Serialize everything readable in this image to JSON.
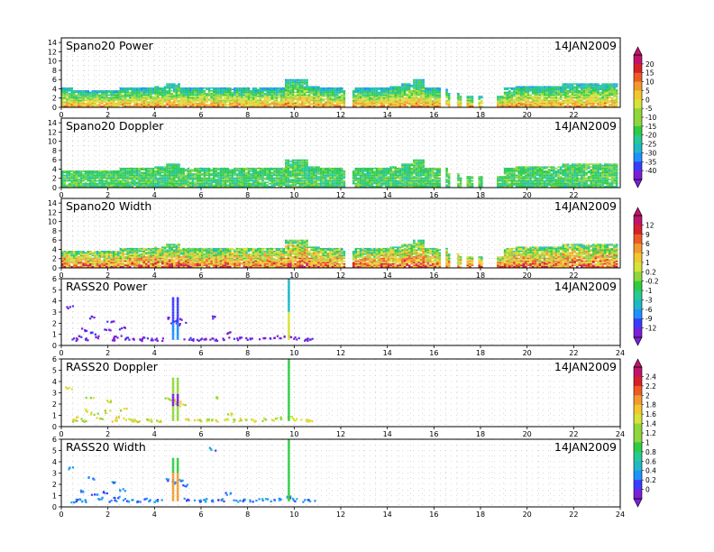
{
  "chart_data": [
    {
      "type": "heatmap",
      "title": "Spano20 Power",
      "date": "14JAN2009",
      "xlim": [
        0,
        24
      ],
      "ylim": [
        0,
        15
      ],
      "xticks": [
        0,
        2,
        4,
        6,
        8,
        10,
        12,
        14,
        16,
        18,
        20,
        22
      ],
      "yticks": [
        0,
        2,
        4,
        6,
        8,
        10,
        12,
        14
      ],
      "coverage_top_km": [
        [
          0,
          4
        ],
        [
          0.5,
          3.5
        ],
        [
          1,
          3.5
        ],
        [
          1.5,
          3.5
        ],
        [
          2,
          3.5
        ],
        [
          2.5,
          4
        ],
        [
          3,
          4
        ],
        [
          3.5,
          4
        ],
        [
          4,
          4.5
        ],
        [
          4.5,
          5
        ],
        [
          5,
          4
        ],
        [
          5.5,
          4
        ],
        [
          6,
          4
        ],
        [
          6.5,
          4
        ],
        [
          7,
          4
        ],
        [
          7.5,
          4
        ],
        [
          8,
          4
        ],
        [
          8.5,
          4
        ],
        [
          9,
          4
        ],
        [
          9.5,
          6
        ],
        [
          10,
          6
        ],
        [
          10.5,
          4.5
        ],
        [
          11,
          4
        ],
        [
          11.5,
          4
        ],
        [
          12,
          3.5
        ],
        [
          12.5,
          4
        ],
        [
          13,
          4
        ],
        [
          13.5,
          4
        ],
        [
          14,
          4.5
        ],
        [
          14.5,
          5
        ],
        [
          15,
          6
        ],
        [
          15.5,
          4
        ],
        [
          16,
          4
        ],
        [
          16.5,
          3
        ],
        [
          17,
          2.5
        ],
        [
          17.5,
          2.5
        ],
        [
          18.5,
          2.5
        ],
        [
          19,
          4
        ],
        [
          19.5,
          4.5
        ],
        [
          20,
          4.5
        ],
        [
          20.5,
          4.5
        ],
        [
          21,
          4.5
        ],
        [
          21.5,
          5
        ],
        [
          22,
          5
        ],
        [
          22.5,
          5
        ],
        [
          23,
          5
        ],
        [
          23.5,
          5
        ]
      ],
      "gaps_hours": [
        [
          12.1,
          12.4
        ],
        [
          16.2,
          16.4
        ],
        [
          16.6,
          16.9
        ],
        [
          17.1,
          17.3
        ],
        [
          17.6,
          17.8
        ],
        [
          18.0,
          18.6
        ],
        [
          18.8,
          18.9
        ]
      ]
    },
    {
      "type": "heatmap",
      "title": "Spano20 Doppler",
      "date": "14JAN2009",
      "xlim": [
        0,
        24
      ],
      "ylim": [
        0,
        15
      ],
      "xticks": [
        0,
        2,
        4,
        6,
        8,
        10,
        12,
        14,
        16,
        18,
        20,
        22
      ],
      "yticks": [
        0,
        2,
        4,
        6,
        8,
        10,
        12,
        14
      ],
      "coverage_top_km": [
        [
          0,
          3.5
        ],
        [
          0.5,
          3.5
        ],
        [
          1,
          3.5
        ],
        [
          1.5,
          3.5
        ],
        [
          2,
          3.5
        ],
        [
          2.5,
          4
        ],
        [
          3,
          4
        ],
        [
          3.5,
          4
        ],
        [
          4,
          4.5
        ],
        [
          4.5,
          5
        ],
        [
          5,
          4
        ],
        [
          5.5,
          4
        ],
        [
          6,
          4
        ],
        [
          6.5,
          4
        ],
        [
          7,
          4
        ],
        [
          7.5,
          4
        ],
        [
          8,
          4
        ],
        [
          8.5,
          4
        ],
        [
          9,
          4
        ],
        [
          9.5,
          6
        ],
        [
          10,
          6
        ],
        [
          10.5,
          4.5
        ],
        [
          11,
          4
        ],
        [
          11.5,
          4
        ],
        [
          12,
          3.5
        ],
        [
          12.5,
          4
        ],
        [
          13,
          4
        ],
        [
          13.5,
          4
        ],
        [
          14,
          4.5
        ],
        [
          14.5,
          5
        ],
        [
          15,
          6
        ],
        [
          15.5,
          4
        ],
        [
          16,
          4
        ],
        [
          16.5,
          3
        ],
        [
          17,
          2.5
        ],
        [
          17.5,
          2.5
        ],
        [
          18.5,
          2.5
        ],
        [
          19,
          4
        ],
        [
          19.5,
          4.5
        ],
        [
          20,
          4.5
        ],
        [
          20.5,
          4.5
        ],
        [
          21,
          4.5
        ],
        [
          21.5,
          5
        ],
        [
          22,
          5
        ],
        [
          22.5,
          5
        ],
        [
          23,
          5
        ],
        [
          23.5,
          5
        ]
      ],
      "gaps_hours": [
        [
          12.1,
          12.4
        ],
        [
          16.2,
          16.4
        ],
        [
          16.6,
          16.9
        ],
        [
          17.1,
          17.3
        ],
        [
          17.6,
          17.8
        ],
        [
          18.0,
          18.6
        ],
        [
          18.8,
          18.9
        ]
      ]
    },
    {
      "type": "heatmap",
      "title": "Spano20 Width",
      "date": "14JAN2009",
      "xlim": [
        0,
        24
      ],
      "ylim": [
        0,
        15
      ],
      "xticks": [
        0,
        2,
        4,
        6,
        8,
        10,
        12,
        14,
        16,
        18,
        20,
        22
      ],
      "yticks": [
        0,
        2,
        4,
        6,
        8,
        10,
        12,
        14
      ],
      "coverage_top_km": [
        [
          0,
          3.5
        ],
        [
          0.5,
          3.5
        ],
        [
          1,
          3.5
        ],
        [
          1.5,
          3.5
        ],
        [
          2,
          3.5
        ],
        [
          2.5,
          4
        ],
        [
          3,
          4
        ],
        [
          3.5,
          4
        ],
        [
          4,
          4.5
        ],
        [
          4.5,
          5
        ],
        [
          5,
          4
        ],
        [
          5.5,
          4
        ],
        [
          6,
          4
        ],
        [
          6.5,
          4
        ],
        [
          7,
          4
        ],
        [
          7.5,
          4
        ],
        [
          8,
          4
        ],
        [
          8.5,
          4
        ],
        [
          9,
          4
        ],
        [
          9.5,
          6
        ],
        [
          10,
          6
        ],
        [
          10.5,
          4.5
        ],
        [
          11,
          4
        ],
        [
          11.5,
          4
        ],
        [
          12,
          3.5
        ],
        [
          12.5,
          4
        ],
        [
          13,
          4
        ],
        [
          13.5,
          4
        ],
        [
          14,
          4.5
        ],
        [
          14.5,
          5
        ],
        [
          15,
          6
        ],
        [
          15.5,
          4
        ],
        [
          16,
          4
        ],
        [
          16.5,
          3
        ],
        [
          17,
          2.5
        ],
        [
          17.5,
          2.5
        ],
        [
          18.5,
          2.5
        ],
        [
          19,
          4
        ],
        [
          19.5,
          4.5
        ],
        [
          20,
          4.5
        ],
        [
          20.5,
          4.5
        ],
        [
          21,
          4.5
        ],
        [
          21.5,
          5
        ],
        [
          22,
          5
        ],
        [
          22.5,
          5
        ],
        [
          23,
          5
        ],
        [
          23.5,
          5
        ]
      ],
      "gaps_hours": [
        [
          12.1,
          12.4
        ],
        [
          16.2,
          16.4
        ],
        [
          16.6,
          16.9
        ],
        [
          17.1,
          17.3
        ],
        [
          17.6,
          17.8
        ],
        [
          18.0,
          18.6
        ],
        [
          18.8,
          18.9
        ]
      ]
    },
    {
      "type": "scatter",
      "title": "RASS20 Power",
      "date": "14JAN2009",
      "xlim": [
        0,
        24
      ],
      "ylim": [
        0,
        6
      ],
      "xticks": [
        0,
        2,
        4,
        6,
        8,
        10,
        12,
        14,
        16,
        18,
        20,
        22,
        24
      ],
      "yticks": [
        0,
        1,
        2,
        3,
        4,
        5,
        6
      ],
      "points": [
        [
          0.3,
          3.5
        ],
        [
          0.5,
          0.6
        ],
        [
          0.7,
          0.8
        ],
        [
          0.9,
          1.5
        ],
        [
          1.0,
          0.6
        ],
        [
          1.2,
          2.6
        ],
        [
          1.4,
          1.2
        ],
        [
          1.6,
          0.8
        ],
        [
          1.9,
          1.4
        ],
        [
          2.1,
          2.3
        ],
        [
          2.2,
          0.6
        ],
        [
          2.4,
          0.9
        ],
        [
          2.6,
          1.6
        ],
        [
          2.8,
          0.7
        ],
        [
          3.0,
          0.6
        ],
        [
          3.3,
          0.6
        ],
        [
          3.6,
          0.7
        ],
        [
          3.9,
          0.6
        ],
        [
          4.2,
          0.6
        ],
        [
          4.6,
          2.5
        ],
        [
          4.8,
          2.2
        ],
        [
          5.0,
          2.4
        ],
        [
          5.2,
          2.0
        ],
        [
          5.4,
          0.7
        ],
        [
          5.8,
          0.6
        ],
        [
          6.1,
          0.6
        ],
        [
          6.3,
          0.7
        ],
        [
          6.6,
          0.6
        ],
        [
          7.0,
          0.7
        ],
        [
          7.5,
          0.6
        ],
        [
          7.8,
          0.7
        ],
        [
          8.2,
          0.6
        ],
        [
          8.6,
          0.7
        ],
        [
          9.0,
          0.7
        ],
        [
          9.4,
          0.8
        ],
        [
          9.7,
          0.9
        ],
        [
          10.0,
          0.7
        ],
        [
          10.4,
          0.6
        ],
        [
          10.7,
          0.6
        ],
        [
          6.5,
          2.6
        ],
        [
          7.2,
          1.2
        ]
      ]
    },
    {
      "type": "scatter",
      "title": "RASS20 Doppler",
      "date": "14JAN2009",
      "xlim": [
        0,
        24
      ],
      "ylim": [
        0,
        6
      ],
      "xticks": [
        0,
        2,
        4,
        6,
        8,
        10,
        12,
        14,
        16,
        18,
        20,
        22,
        24
      ],
      "yticks": [
        0,
        1,
        2,
        3,
        4,
        5,
        6
      ],
      "points": [
        [
          0.3,
          3.5
        ],
        [
          0.5,
          0.6
        ],
        [
          0.7,
          0.8
        ],
        [
          0.9,
          1.5
        ],
        [
          1.0,
          0.6
        ],
        [
          1.2,
          2.6
        ],
        [
          1.4,
          1.2
        ],
        [
          1.6,
          0.8
        ],
        [
          1.9,
          1.4
        ],
        [
          2.1,
          2.3
        ],
        [
          2.2,
          0.6
        ],
        [
          2.4,
          0.9
        ],
        [
          2.6,
          1.6
        ],
        [
          2.8,
          0.7
        ],
        [
          3.0,
          0.6
        ],
        [
          3.3,
          0.6
        ],
        [
          3.6,
          0.7
        ],
        [
          3.9,
          0.6
        ],
        [
          4.2,
          0.6
        ],
        [
          4.6,
          2.5
        ],
        [
          4.8,
          2.2
        ],
        [
          5.0,
          2.4
        ],
        [
          5.2,
          2.0
        ],
        [
          5.4,
          0.7
        ],
        [
          5.8,
          0.6
        ],
        [
          6.1,
          0.6
        ],
        [
          6.3,
          0.7
        ],
        [
          6.6,
          0.6
        ],
        [
          7.0,
          0.7
        ],
        [
          7.5,
          0.6
        ],
        [
          7.8,
          0.7
        ],
        [
          8.2,
          0.6
        ],
        [
          8.6,
          0.7
        ],
        [
          9.0,
          0.7
        ],
        [
          9.4,
          0.8
        ],
        [
          9.7,
          0.9
        ],
        [
          10.0,
          0.7
        ],
        [
          10.4,
          0.6
        ],
        [
          10.7,
          0.6
        ],
        [
          6.5,
          2.6
        ],
        [
          7.2,
          1.2
        ]
      ]
    },
    {
      "type": "scatter",
      "title": "RASS20 Width",
      "date": "14JAN2009",
      "xlim": [
        0,
        24
      ],
      "ylim": [
        0,
        6
      ],
      "xticks": [
        0,
        2,
        4,
        6,
        8,
        10,
        12,
        14,
        16,
        18,
        20,
        22,
        24
      ],
      "yticks": [
        0,
        1,
        2,
        3,
        4,
        5,
        6
      ],
      "points": [
        [
          0.3,
          3.5
        ],
        [
          0.5,
          0.6
        ],
        [
          0.7,
          0.8
        ],
        [
          0.9,
          1.5
        ],
        [
          1.0,
          0.6
        ],
        [
          1.2,
          2.6
        ],
        [
          1.4,
          1.2
        ],
        [
          1.6,
          0.8
        ],
        [
          1.9,
          1.4
        ],
        [
          2.1,
          2.3
        ],
        [
          2.2,
          0.6
        ],
        [
          2.4,
          0.9
        ],
        [
          2.6,
          1.6
        ],
        [
          2.8,
          0.7
        ],
        [
          3.0,
          0.6
        ],
        [
          3.3,
          0.6
        ],
        [
          3.6,
          0.7
        ],
        [
          3.9,
          0.6
        ],
        [
          4.2,
          0.6
        ],
        [
          4.6,
          2.5
        ],
        [
          4.8,
          2.2
        ],
        [
          5.0,
          2.4
        ],
        [
          5.2,
          2.0
        ],
        [
          5.4,
          0.7
        ],
        [
          5.8,
          0.6
        ],
        [
          6.1,
          0.6
        ],
        [
          6.3,
          0.7
        ],
        [
          6.6,
          0.6
        ],
        [
          7.0,
          0.7
        ],
        [
          7.5,
          0.6
        ],
        [
          7.8,
          0.7
        ],
        [
          8.2,
          0.6
        ],
        [
          8.6,
          0.7
        ],
        [
          9.0,
          0.7
        ],
        [
          9.4,
          0.8
        ],
        [
          9.7,
          0.9
        ],
        [
          10.0,
          0.7
        ],
        [
          10.4,
          0.6
        ],
        [
          10.7,
          0.6
        ],
        [
          6.5,
          5.2
        ],
        [
          7.2,
          1.2
        ]
      ]
    }
  ],
  "colorbars": [
    {
      "labels": [
        "20",
        "15",
        "10",
        "5",
        "0",
        "-5",
        "-10",
        "-15",
        "-20",
        "-25",
        "-30",
        "-35",
        "-40"
      ]
    },
    {
      "labels": [
        "12",
        "9",
        "6",
        "3",
        "1",
        "0.2",
        "-0.2",
        "-1",
        "-3",
        "-6",
        "-9",
        "-12"
      ]
    },
    {
      "labels": [
        "2.4",
        "2.2",
        "2",
        "1.8",
        "1.6",
        "1.4",
        "1.2",
        "1",
        "0.8",
        "0.6",
        "0.4",
        "0.2",
        "0"
      ]
    }
  ],
  "palette": [
    "#7a1fd6",
    "#3b3bff",
    "#1e90ff",
    "#1fb8c7",
    "#27c994",
    "#2ecc40",
    "#8fd63a",
    "#d6e33a",
    "#f2c72e",
    "#f29a2e",
    "#ee5a24",
    "#d6202a",
    "#c0136b"
  ]
}
